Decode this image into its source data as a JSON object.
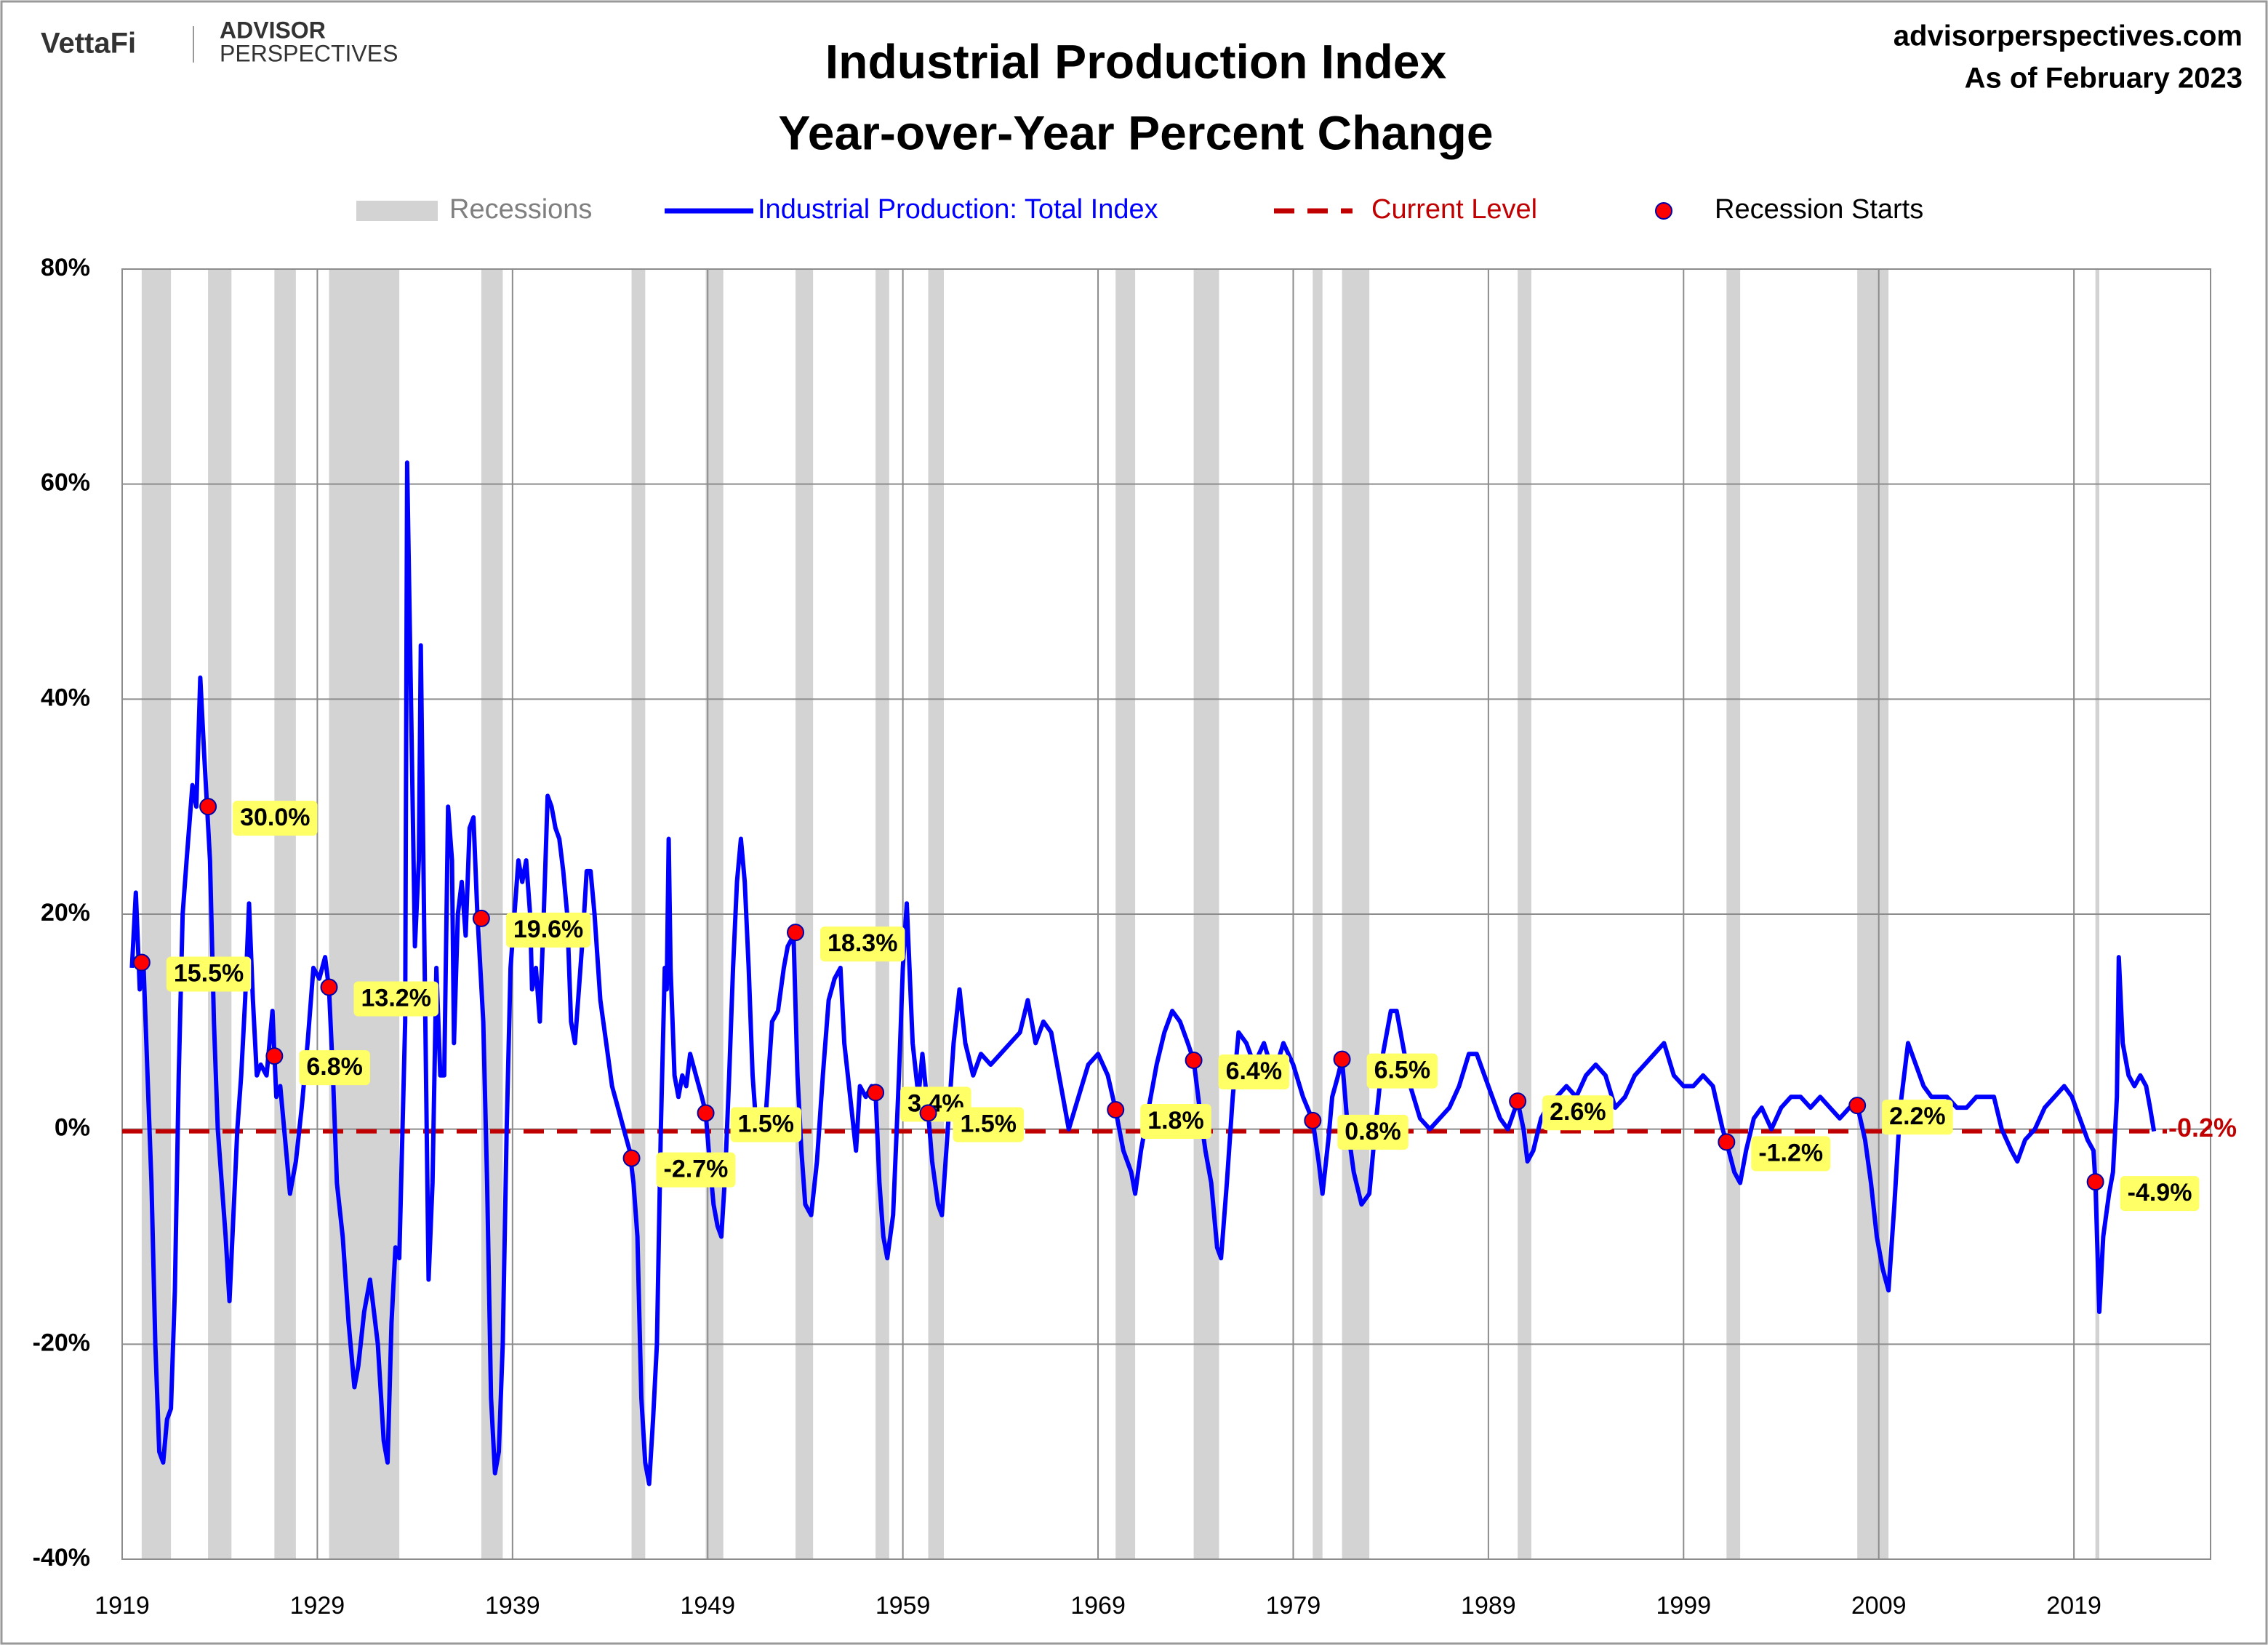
{
  "header": {
    "logo": "VettaFi",
    "brand_top": "ADVISOR",
    "brand_bottom": "PERSPECTIVES",
    "site": "advisorperspectives.com",
    "as_of": "As of February 2023"
  },
  "chart_data": {
    "type": "line",
    "title": "Industrial Production Index",
    "subtitle": "Year-over-Year Percent Change",
    "xlim": [
      1919,
      2026
    ],
    "xticks": [
      1919,
      1929,
      1939,
      1949,
      1959,
      1969,
      1979,
      1989,
      1999,
      2009,
      2019
    ],
    "ylim": [
      -40,
      80
    ],
    "yticks": [
      {
        "value": -40,
        "label": "-40%"
      },
      {
        "value": -20,
        "label": "-20%"
      },
      {
        "value": 0,
        "label": "0%"
      },
      {
        "value": 20,
        "label": "20%"
      },
      {
        "value": 40,
        "label": "40%"
      },
      {
        "value": 60,
        "label": "60%"
      },
      {
        "value": 80,
        "label": "80%"
      }
    ],
    "grid": true,
    "recessions": {
      "name": "Recessions",
      "color": "#d3d3d3",
      "periods": [
        [
          1920.0,
          1921.5
        ],
        [
          1923.4,
          1924.6
        ],
        [
          1926.8,
          1927.9
        ],
        [
          1929.6,
          1933.2
        ],
        [
          1937.4,
          1938.5
        ],
        [
          1945.1,
          1945.8
        ],
        [
          1948.9,
          1949.8
        ],
        [
          1953.5,
          1954.4
        ],
        [
          1957.6,
          1958.3
        ],
        [
          1960.3,
          1961.1
        ],
        [
          1969.9,
          1970.9
        ],
        [
          1973.9,
          1975.2
        ],
        [
          1980.0,
          1980.5
        ],
        [
          1981.5,
          1982.9
        ],
        [
          1990.5,
          1991.2
        ],
        [
          2001.2,
          2001.9
        ],
        [
          2007.9,
          2009.5
        ],
        [
          2020.1,
          2020.3
        ]
      ]
    },
    "series": [
      {
        "name": "Industrial Production: Total Index",
        "color": "#0000ff",
        "x": [
          1919.5,
          1919.7,
          1919.9,
          1920.1,
          1920.3,
          1920.5,
          1920.7,
          1920.9,
          1921.1,
          1921.3,
          1921.5,
          1921.7,
          1921.9,
          1922.1,
          1922.3,
          1922.6,
          1922.8,
          1923.0,
          1923.2,
          1923.5,
          1923.7,
          1923.9,
          1924.1,
          1924.3,
          1924.5,
          1924.7,
          1924.9,
          1925.1,
          1925.3,
          1925.5,
          1925.7,
          1925.9,
          1926.1,
          1926.4,
          1926.7,
          1926.9,
          1927.1,
          1927.4,
          1927.6,
          1927.9,
          1928.2,
          1928.5,
          1928.8,
          1929.1,
          1929.4,
          1929.6,
          1929.8,
          1930.0,
          1930.3,
          1930.6,
          1930.9,
          1931.1,
          1931.4,
          1931.7,
          1931.9,
          1932.1,
          1932.4,
          1932.6,
          1932.8,
          1933.0,
          1933.2,
          1933.5,
          1933.6,
          1933.8,
          1934.0,
          1934.2,
          1934.3,
          1934.5,
          1934.7,
          1934.9,
          1935.1,
          1935.3,
          1935.5,
          1935.7,
          1935.9,
          1936.0,
          1936.2,
          1936.4,
          1936.6,
          1936.8,
          1937.0,
          1937.2,
          1937.5,
          1937.7,
          1937.9,
          1938.1,
          1938.3,
          1938.5,
          1938.7,
          1938.9,
          1939.1,
          1939.3,
          1939.5,
          1939.7,
          1939.9,
          1940.0,
          1940.2,
          1940.4,
          1940.6,
          1940.8,
          1941.0,
          1941.2,
          1941.4,
          1941.6,
          1941.8,
          1942.0,
          1942.2,
          1942.4,
          1942.6,
          1942.8,
          1943.0,
          1943.2,
          1943.5,
          1943.8,
          1944.1,
          1944.4,
          1944.7,
          1945.0,
          1945.2,
          1945.4,
          1945.6,
          1945.8,
          1946.0,
          1946.2,
          1946.4,
          1946.6,
          1946.8,
          1946.9,
          1947.0,
          1947.1,
          1947.3,
          1947.5,
          1947.7,
          1947.9,
          1948.1,
          1948.4,
          1948.7,
          1948.9,
          1949.1,
          1949.3,
          1949.5,
          1949.7,
          1949.9,
          1950.1,
          1950.3,
          1950.5,
          1950.7,
          1950.9,
          1951.1,
          1951.3,
          1951.5,
          1951.8,
          1952.0,
          1952.3,
          1952.6,
          1952.9,
          1953.1,
          1953.4,
          1953.6,
          1953.8,
          1954.0,
          1954.3,
          1954.6,
          1954.9,
          1955.2,
          1955.5,
          1955.8,
          1956.0,
          1956.3,
          1956.6,
          1956.8,
          1957.1,
          1957.4,
          1957.6,
          1957.8,
          1958.0,
          1958.2,
          1958.5,
          1958.8,
          1959.0,
          1959.2,
          1959.5,
          1959.8,
          1960.0,
          1960.3,
          1960.5,
          1960.8,
          1961.0,
          1961.3,
          1961.6,
          1961.9,
          1962.2,
          1962.6,
          1963.0,
          1963.5,
          1964.0,
          1964.5,
          1965.0,
          1965.4,
          1965.8,
          1966.2,
          1966.6,
          1967.0,
          1967.5,
          1968.0,
          1968.5,
          1969.0,
          1969.5,
          1969.9,
          1970.3,
          1970.7,
          1970.9,
          1971.2,
          1971.6,
          1972.0,
          1972.4,
          1972.8,
          1973.2,
          1973.6,
          1973.9,
          1974.2,
          1974.5,
          1974.8,
          1975.1,
          1975.3,
          1975.6,
          1975.9,
          1976.2,
          1976.6,
          1977.0,
          1977.5,
          1978.0,
          1978.5,
          1979.0,
          1979.5,
          1980.0,
          1980.3,
          1980.5,
          1980.8,
          1981.0,
          1981.3,
          1981.5,
          1981.8,
          1982.1,
          1982.5,
          1982.9,
          1983.2,
          1983.6,
          1984.0,
          1984.3,
          1984.7,
          1985.0,
          1985.5,
          1986.0,
          1986.5,
          1987.0,
          1987.5,
          1988.0,
          1988.4,
          1988.8,
          1989.2,
          1989.6,
          1990.0,
          1990.5,
          1990.8,
          1991.0,
          1991.3,
          1991.7,
          1992.0,
          1992.5,
          1993.0,
          1993.5,
          1994.0,
          1994.5,
          1995.0,
          1995.5,
          1996.0,
          1996.5,
          1997.0,
          1997.5,
          1998.0,
          1998.5,
          1999.0,
          1999.5,
          2000.0,
          2000.5,
          2001.0,
          2001.2,
          2001.6,
          2001.9,
          2002.2,
          2002.6,
          2003.0,
          2003.5,
          2004.0,
          2004.5,
          2005.0,
          2005.5,
          2006.0,
          2006.5,
          2007.0,
          2007.5,
          2007.9,
          2008.3,
          2008.6,
          2008.9,
          2009.2,
          2009.5,
          2009.8,
          2010.1,
          2010.5,
          2010.9,
          2011.3,
          2011.7,
          2012.1,
          2012.5,
          2013.0,
          2013.5,
          2014.0,
          2014.5,
          2014.9,
          2015.3,
          2015.8,
          2016.1,
          2016.5,
          2017.0,
          2017.5,
          2018.0,
          2018.5,
          2018.9,
          2019.3,
          2019.7,
          2020.0,
          2020.1,
          2020.3,
          2020.5,
          2020.8,
          2021.0,
          2021.2,
          2021.3,
          2021.5,
          2021.8,
          2022.1,
          2022.4,
          2022.7,
          2022.9,
          2023.1
        ],
        "values": [
          15,
          22,
          13,
          15,
          5,
          -5,
          -20,
          -30,
          -31,
          -27,
          -26,
          -15,
          5,
          20,
          25,
          32,
          30,
          42,
          35,
          25,
          10,
          0,
          -5,
          -10,
          -16,
          -8,
          0,
          5,
          12,
          21,
          12,
          5,
          6,
          5,
          11,
          3,
          4,
          -2,
          -6,
          -3,
          2,
          8,
          15,
          14,
          16,
          13,
          5,
          -5,
          -10,
          -18,
          -24,
          -22,
          -17,
          -14,
          -17,
          -20,
          -29,
          -31,
          -18,
          -11,
          -12,
          10,
          62,
          40,
          17,
          25,
          45,
          15,
          -14,
          -5,
          15,
          5,
          5,
          30,
          25,
          8,
          20,
          23,
          18,
          28,
          29,
          20,
          10,
          -5,
          -25,
          -32,
          -30,
          -20,
          0,
          15,
          20,
          25,
          23,
          25,
          20,
          13,
          15,
          10,
          20,
          31,
          30,
          28,
          27,
          24,
          20,
          10,
          8,
          13,
          18,
          24,
          24,
          20,
          12,
          8,
          4,
          2,
          0,
          -2,
          -5,
          -10,
          -25,
          -31,
          -33,
          -27,
          -20,
          0,
          15,
          13,
          27,
          15,
          5,
          3,
          5,
          4,
          7,
          5,
          3,
          1.5,
          -3,
          -7,
          -9,
          -10,
          -4,
          5,
          15,
          23,
          27,
          23,
          15,
          5,
          0,
          -1,
          2,
          10,
          11,
          15,
          17,
          18,
          5,
          -2,
          -7,
          -8,
          -3,
          5,
          12,
          14,
          15,
          8,
          3,
          -2,
          4,
          3,
          4,
          3.4,
          -5,
          -10,
          -12,
          -8,
          5,
          15,
          21,
          8,
          3,
          7,
          1.5,
          -3,
          -7,
          -8,
          0,
          8,
          13,
          8,
          5,
          7,
          6,
          7,
          8,
          9,
          12,
          8,
          10,
          9,
          5,
          0,
          3,
          6,
          7,
          5,
          1.8,
          -2,
          -4,
          -6,
          -2,
          2,
          6,
          9,
          11,
          10,
          8,
          6.4,
          2,
          -2,
          -5,
          -11,
          -12,
          -5,
          3,
          9,
          8,
          6,
          8,
          5,
          8,
          6,
          3,
          0.8,
          -3,
          -6,
          -1,
          3,
          5,
          6.5,
          0,
          -4,
          -7,
          -6,
          0,
          7,
          11,
          11,
          7,
          4,
          1,
          0,
          1,
          2,
          4,
          7,
          7,
          5,
          3,
          1,
          0,
          2.6,
          0,
          -3,
          -2,
          1,
          2,
          3,
          4,
          3,
          5,
          6,
          5,
          2,
          3,
          5,
          6,
          7,
          8,
          5,
          4,
          4,
          5,
          4,
          0,
          -1.2,
          -4,
          -5,
          -2,
          1,
          2,
          0,
          2,
          3,
          3,
          2,
          3,
          2,
          1,
          2,
          2.2,
          -1,
          -5,
          -10,
          -13,
          -15,
          -7,
          2,
          8,
          6,
          4,
          3,
          3,
          3,
          2,
          2,
          3,
          3,
          3,
          0,
          -2,
          -3,
          -1,
          0,
          2,
          3,
          4,
          3,
          1,
          -1,
          -2,
          -4.9,
          -17,
          -10,
          -6,
          -4,
          3,
          16,
          8,
          5,
          4,
          5,
          4,
          2,
          -0.2
        ]
      }
    ],
    "current_level": {
      "name": "Current Level",
      "value": -0.2,
      "label": "-0.2%",
      "color": "#c00000"
    },
    "recession_starts": {
      "name": "Recession Starts",
      "color": "#ff0000",
      "x": [
        1920.0,
        1923.4,
        1926.8,
        1929.6,
        1937.4,
        1945.1,
        1948.9,
        1953.5,
        1957.6,
        1960.3,
        1969.9,
        1973.9,
        1980.0,
        1981.5,
        1990.5,
        2001.2,
        2007.9,
        2020.1
      ],
      "values": [
        15.5,
        30.0,
        6.8,
        13.2,
        19.6,
        -2.7,
        1.5,
        18.3,
        3.4,
        1.5,
        1.8,
        6.4,
        0.8,
        6.5,
        2.6,
        -1.2,
        2.2,
        -4.9
      ],
      "value_labels": [
        "15.5%",
        "30.0%",
        "6.8%",
        "13.2%",
        "19.6%",
        "-2.7%",
        "1.5%",
        "18.3%",
        "3.4%",
        "1.5%",
        "1.8%",
        "6.4%",
        "0.8%",
        "6.5%",
        "2.6%",
        "-1.2%",
        "2.2%",
        "-4.9%"
      ]
    }
  }
}
